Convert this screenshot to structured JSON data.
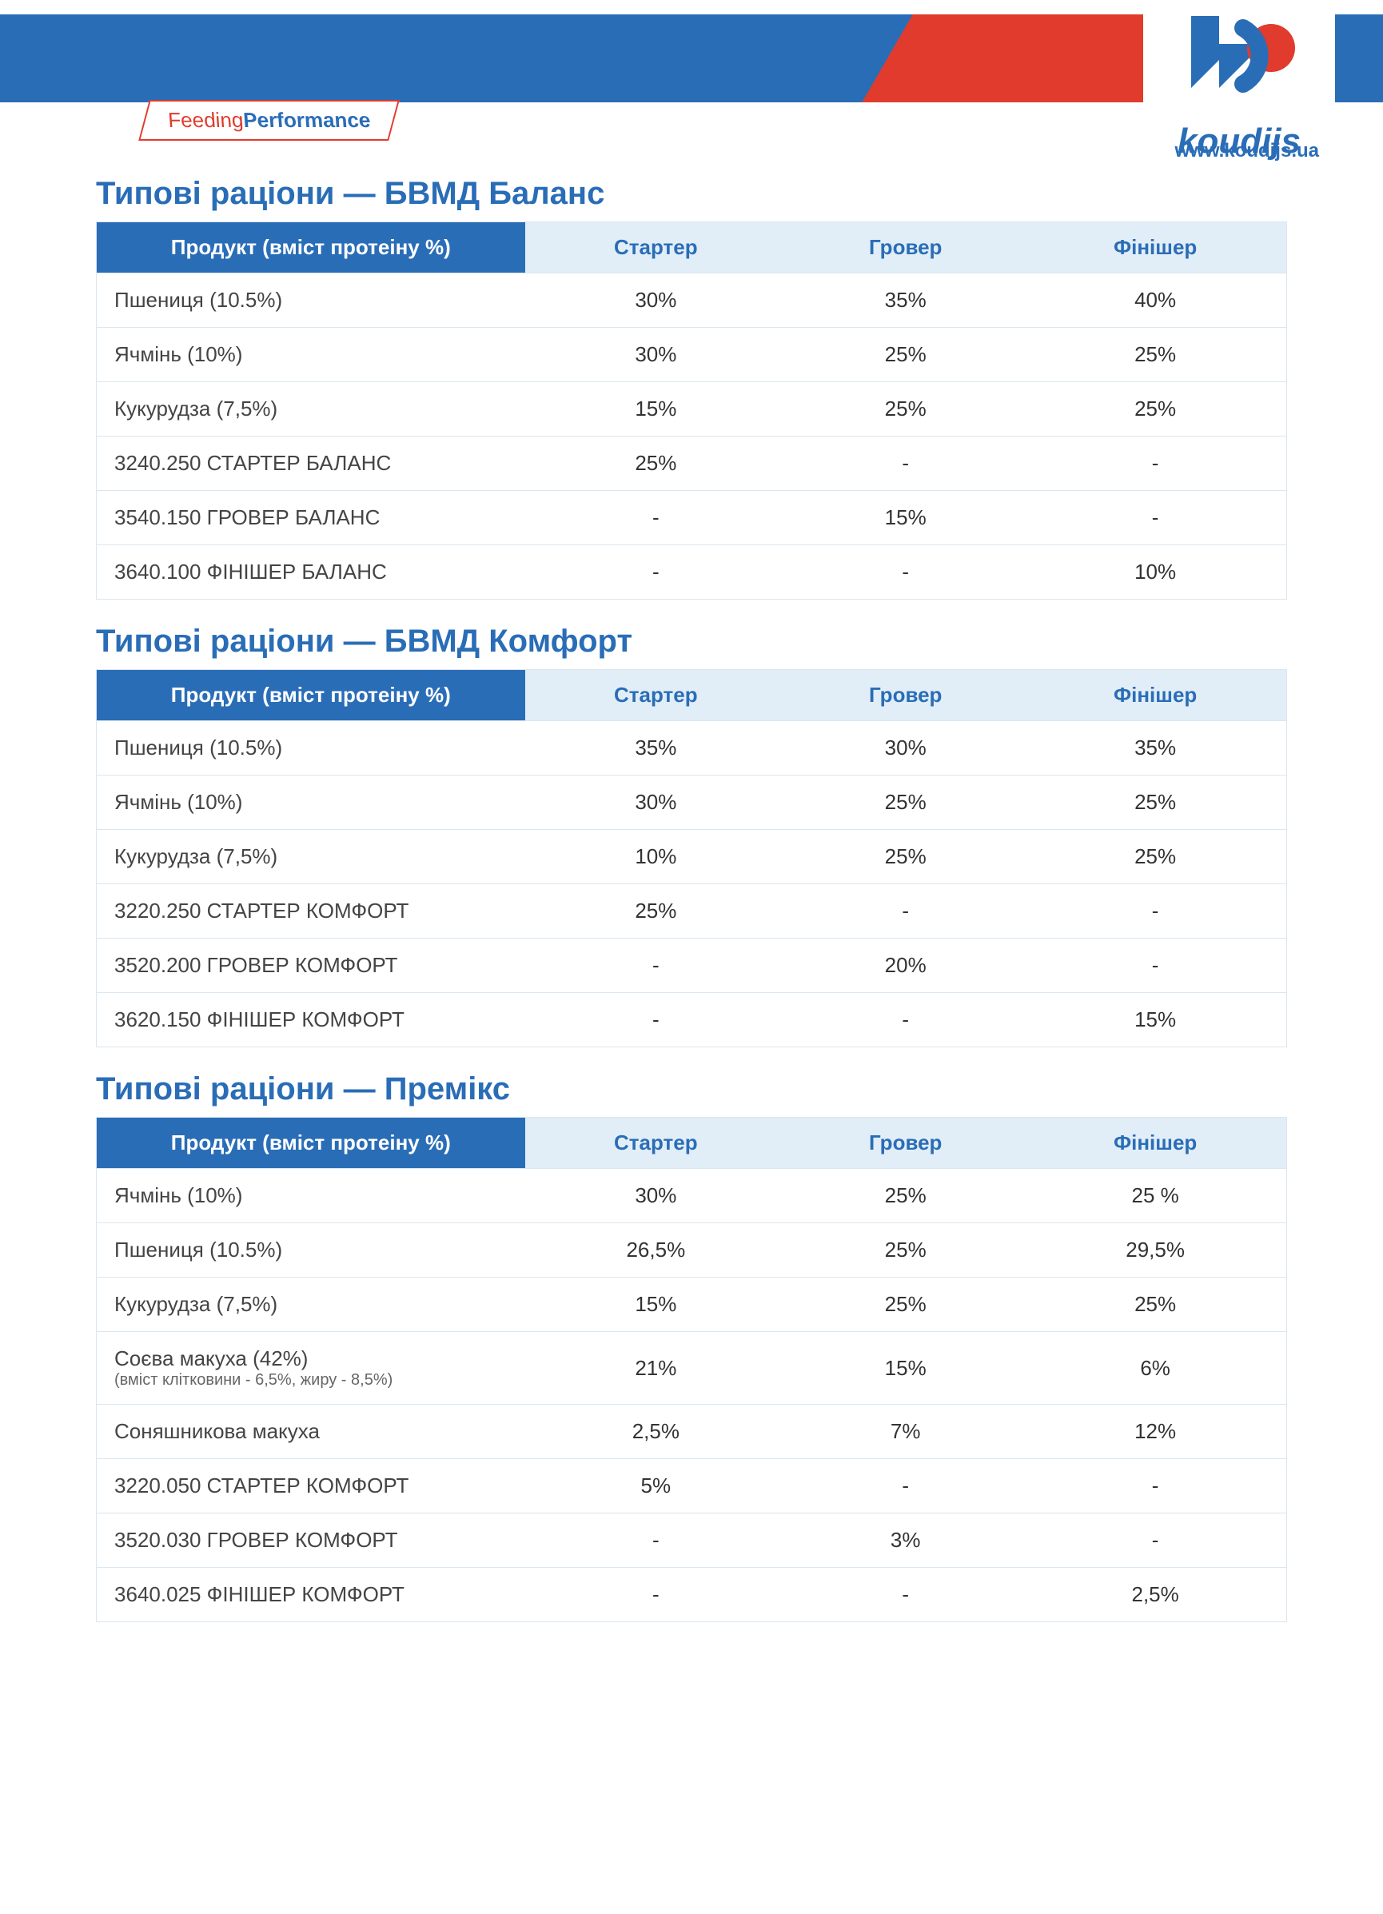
{
  "brand": {
    "tagline_feeding": "Feeding ",
    "tagline_performance": "Performance",
    "logo_text": "koudijs",
    "website": "www.koudijs.ua",
    "colors": {
      "blue": "#2a6db7",
      "red": "#e03b2c",
      "header_light": "#e2eef7",
      "border": "#dbe6ef"
    }
  },
  "tables": [
    {
      "title": "Типові раціони — БВМД Баланс",
      "columns": [
        "Продукт (вміст протеіну %)",
        "Стартер",
        "Гровер",
        "Фінішер"
      ],
      "rows": [
        {
          "product": "Пшениця (10.5%)",
          "values": [
            "30%",
            "35%",
            "40%"
          ]
        },
        {
          "product": "Ячмінь (10%)",
          "values": [
            "30%",
            "25%",
            "25%"
          ]
        },
        {
          "product": "Кукурудза (7,5%)",
          "values": [
            "15%",
            "25%",
            "25%"
          ]
        },
        {
          "product": "3240.250 СТАРТЕР БАЛАНС",
          "values": [
            "25%",
            "-",
            "-"
          ]
        },
        {
          "product": "3540.150 ГРОВЕР БАЛАНС",
          "values": [
            "-",
            "15%",
            "-"
          ]
        },
        {
          "product": "3640.100 ФІНІШЕР БАЛАНС",
          "values": [
            "-",
            "-",
            "10%"
          ]
        }
      ]
    },
    {
      "title": "Типові раціони — БВМД Комфорт",
      "columns": [
        "Продукт (вміст протеіну %)",
        "Стартер",
        "Гровер",
        "Фінішер"
      ],
      "rows": [
        {
          "product": "Пшениця (10.5%)",
          "values": [
            "35%",
            "30%",
            "35%"
          ]
        },
        {
          "product": "Ячмінь (10%)",
          "values": [
            "30%",
            "25%",
            "25%"
          ]
        },
        {
          "product": "Кукурудза (7,5%)",
          "values": [
            "10%",
            "25%",
            "25%"
          ]
        },
        {
          "product": "3220.250 СТАРТЕР КОМФОРТ",
          "values": [
            "25%",
            "-",
            "-"
          ]
        },
        {
          "product": "3520.200 ГРОВЕР КОМФОРТ",
          "values": [
            "-",
            "20%",
            "-"
          ]
        },
        {
          "product": "3620.150 ФІНІШЕР КОМФОРТ",
          "values": [
            "-",
            "-",
            "15%"
          ]
        }
      ]
    },
    {
      "title": "Типові раціони — Премікс",
      "columns": [
        "Продукт (вміст протеіну %)",
        "Стартер",
        "Гровер",
        "Фінішер"
      ],
      "rows": [
        {
          "product": "Ячмінь (10%)",
          "values": [
            "30%",
            "25%",
            "25 %"
          ]
        },
        {
          "product": "Пшениця (10.5%)",
          "values": [
            "26,5%",
            "25%",
            "29,5%"
          ]
        },
        {
          "product": "Кукурудза (7,5%)",
          "values": [
            "15%",
            "25%",
            "25%"
          ]
        },
        {
          "product": "Соєва макуха (42%)",
          "sub": "(вміст клітковини - 6,5%, жиру - 8,5%)",
          "values": [
            "21%",
            "15%",
            "6%"
          ]
        },
        {
          "product": "Соняшникова макуха",
          "values": [
            "2,5%",
            "7%",
            "12%"
          ]
        },
        {
          "product": "3220.050 СТАРТЕР КОМФОРТ",
          "values": [
            "5%",
            "-",
            "-"
          ]
        },
        {
          "product": "3520.030 ГРОВЕР КОМФОРТ",
          "values": [
            "-",
            "3%",
            "-"
          ]
        },
        {
          "product": "3640.025 ФІНІШЕР КОМФОРТ",
          "values": [
            "-",
            "-",
            "2,5%"
          ]
        }
      ]
    }
  ]
}
